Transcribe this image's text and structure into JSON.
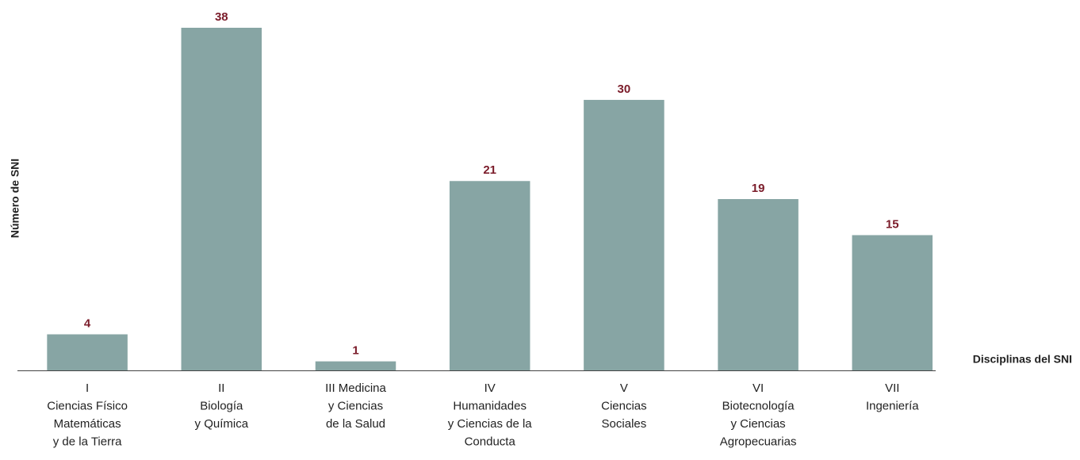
{
  "chart_data": {
    "type": "bar",
    "y_label": "Número de SNI",
    "x_label": "Disciplinas del SNI",
    "categories": [
      [
        "I",
        "Ciencias Físico",
        "Matemáticas",
        "y de la Tierra"
      ],
      [
        "II",
        "Biología",
        "y Química"
      ],
      [
        "III Medicina",
        "y Ciencias",
        "de la Salud"
      ],
      [
        "IV",
        "Humanidades",
        "y Ciencias de la",
        "Conducta"
      ],
      [
        "V",
        "Ciencias",
        "Sociales"
      ],
      [
        "VI",
        "Biotecnología",
        "y Ciencias",
        "Agropecuarias"
      ],
      [
        "VII",
        "Ingeniería"
      ]
    ],
    "values": [
      4,
      38,
      1,
      21,
      30,
      19,
      15
    ],
    "color": "#87a5a4",
    "label_color": "#7b1c2a",
    "ylim": [
      0,
      38
    ]
  }
}
